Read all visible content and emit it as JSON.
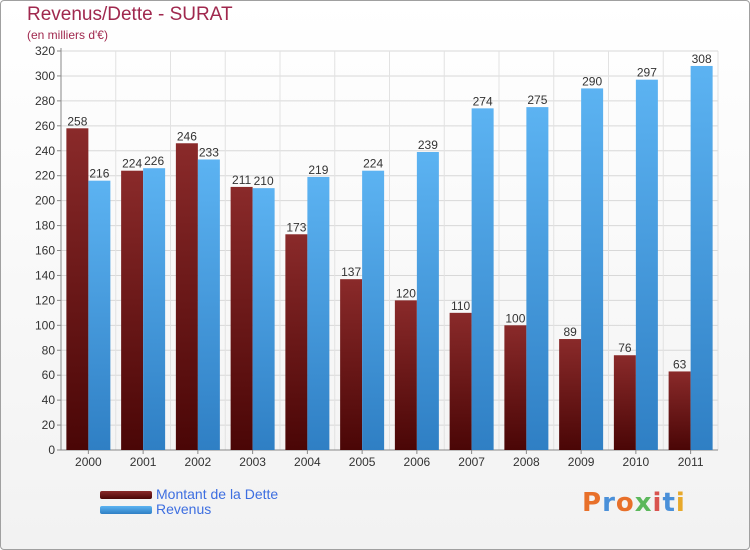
{
  "header": {
    "title": "Revenus/Dette - SURAT",
    "subtitle": "(en milliers d'€)"
  },
  "chart_data": {
    "type": "bar",
    "categories": [
      "2000",
      "2001",
      "2002",
      "2003",
      "2004",
      "2005",
      "2006",
      "2007",
      "2008",
      "2009",
      "2010",
      "2011"
    ],
    "series": [
      {
        "name": "Montant de la Dette",
        "values": [
          258,
          224,
          246,
          211,
          173,
          137,
          120,
          110,
          100,
          89,
          76,
          63
        ],
        "color": "#6e1a1a"
      },
      {
        "name": "Revenus",
        "values": [
          216,
          226,
          233,
          210,
          219,
          224,
          239,
          274,
          275,
          290,
          297,
          308
        ],
        "color": "#4da6ee"
      }
    ],
    "ylim": [
      0,
      320
    ],
    "yticks": [
      0,
      20,
      40,
      60,
      80,
      100,
      120,
      140,
      160,
      180,
      200,
      220,
      240,
      260,
      280,
      300,
      320
    ],
    "grid": true,
    "legend_position": "bottom-left"
  },
  "legend": {
    "items": [
      {
        "label": "Montant de la Dette",
        "color": "#6e1a1a"
      },
      {
        "label": "Revenus",
        "color": "#4da6ee"
      }
    ]
  },
  "logo": {
    "text": "Proxiti",
    "letters": [
      "P",
      "r",
      "o",
      "x",
      "i",
      "t",
      "i"
    ],
    "colors": [
      "#e8702a",
      "#4a90d9",
      "#e8702a",
      "#5cb85c",
      "#d9534f",
      "#4a90d9",
      "#e8a92a"
    ]
  }
}
